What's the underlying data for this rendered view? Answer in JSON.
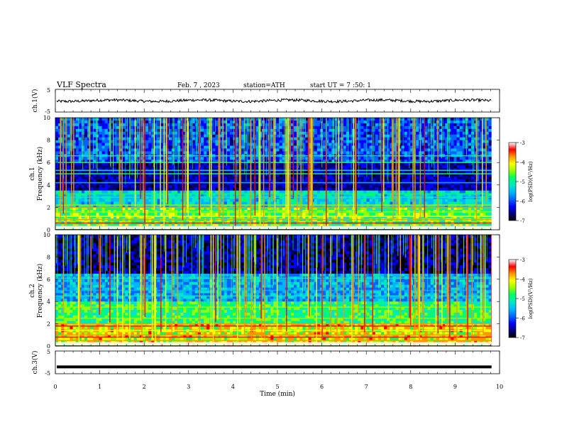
{
  "header": {
    "title": "VLF Spectra",
    "date": "Feb. 7 , 2023",
    "station": "station=ATH",
    "start": "start UT =  7 :50: 1"
  },
  "chart_data": [
    {
      "type": "line",
      "ylabel": "ch.1(V)",
      "ylim": [
        -5,
        5
      ],
      "yticks": [
        "5",
        "-5"
      ],
      "xlim": [
        0,
        10
      ],
      "series_desc": "noisy waveform centred near 0 V with small fluctuations",
      "approx_level": 0,
      "approx_amplitude": 1.2
    },
    {
      "type": "heatmap",
      "ylabel": "ch.1",
      "ylabel2": "Frequency (kHz)",
      "ylim": [
        0,
        10
      ],
      "yticks": [
        "10",
        "8",
        "6",
        "4",
        "2",
        "0"
      ],
      "xlim": [
        0,
        10
      ],
      "data_end_min": 9.82,
      "colorbar": {
        "label": "log(PSD)(V²/Hz)",
        "ticks": [
          "-3",
          "-4",
          "-5",
          "-6",
          "-7"
        ],
        "range": [
          -7,
          -3
        ]
      }
    },
    {
      "type": "heatmap",
      "ylabel": "ch.2",
      "ylabel2": "Frequency (kHz)",
      "ylim": [
        0,
        10
      ],
      "yticks": [
        "10",
        "8",
        "6",
        "4",
        "2",
        "0"
      ],
      "xlim": [
        0,
        10
      ],
      "data_end_min": 9.82,
      "colorbar": {
        "label": "log(PSD)(V²/Hz)",
        "ticks": [
          "-3",
          "-4",
          "-5",
          "-6",
          "-7"
        ],
        "range": [
          -7,
          -3
        ]
      }
    },
    {
      "type": "line",
      "ylabel": "ch.3(V)",
      "ylim": [
        -5,
        5
      ],
      "yticks": [
        "5",
        "-5"
      ],
      "xlim": [
        0,
        10
      ],
      "series_desc": "flat thick line at about -2 V",
      "approx_level": -2
    }
  ],
  "x_axis": {
    "label": "Time (min)",
    "ticks": [
      "0",
      "1",
      "2",
      "3",
      "4",
      "5",
      "6",
      "7",
      "8",
      "9",
      "10"
    ]
  },
  "colors": {
    "colormap": [
      "#000000",
      "#000078",
      "#0000ff",
      "#0064ff",
      "#00b4ff",
      "#00e6c8",
      "#00ff64",
      "#96ff00",
      "#ffff00",
      "#ff9600",
      "#ff0000",
      "#ffffff"
    ]
  }
}
